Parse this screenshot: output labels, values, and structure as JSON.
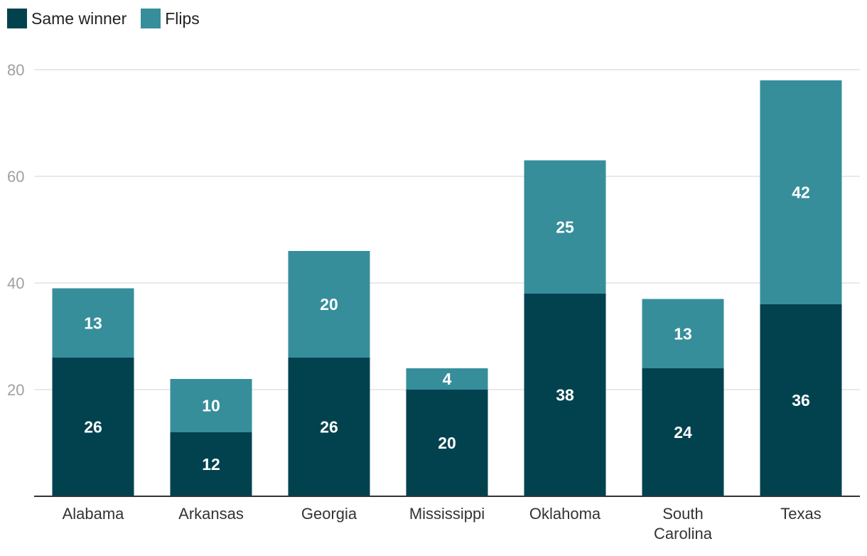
{
  "chart_data": {
    "type": "bar",
    "stacked": true,
    "categories": [
      "Alabama",
      "Arkansas",
      "Georgia",
      "Mississippi",
      "Oklahoma",
      "South Carolina",
      "Texas"
    ],
    "category_lines": [
      [
        "Alabama"
      ],
      [
        "Arkansas"
      ],
      [
        "Georgia"
      ],
      [
        "Mississippi"
      ],
      [
        "Oklahoma"
      ],
      [
        "South",
        "Carolina"
      ],
      [
        "Texas"
      ]
    ],
    "series": [
      {
        "name": "Same winner",
        "color": "#02424f",
        "values": [
          26,
          12,
          26,
          20,
          38,
          24,
          36
        ]
      },
      {
        "name": "Flips",
        "color": "#368e9b",
        "values": [
          13,
          10,
          20,
          4,
          25,
          13,
          42
        ]
      }
    ],
    "ylim": [
      0,
      80
    ],
    "yticks": [
      20,
      40,
      60,
      80
    ],
    "grid": true,
    "legend_position": "top-left",
    "title": "",
    "xlabel": "",
    "ylabel": ""
  }
}
